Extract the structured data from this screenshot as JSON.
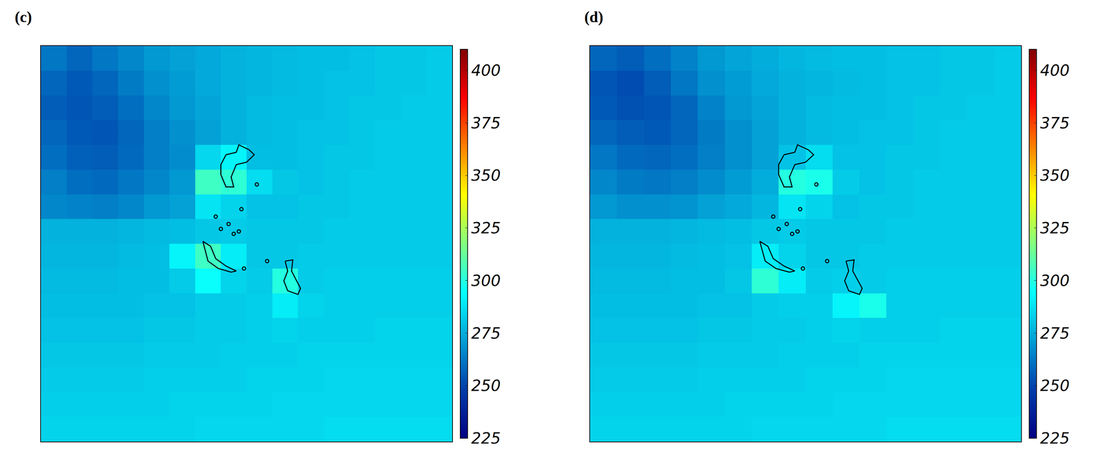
{
  "chart_data": [
    {
      "type": "heatmap",
      "panel": "(c)",
      "tick_labels": false,
      "xlim": [
        0,
        16
      ],
      "ylim": [
        0,
        16
      ],
      "x": [
        0.5,
        1.5,
        2.5,
        3.5,
        4.5,
        5.5,
        6.5,
        7.5,
        8.5,
        9.5,
        10.5,
        11.5,
        12.5,
        13.5,
        14.5,
        15.5
      ],
      "y": [
        15.5,
        14.5,
        13.5,
        12.5,
        11.5,
        10.5,
        9.5,
        8.5,
        7.5,
        6.5,
        5.5,
        4.5,
        3.5,
        2.5,
        1.5,
        0.5
      ],
      "z": [
        [
          262,
          258,
          262,
          266,
          270,
          272,
          274,
          276,
          277,
          278,
          279,
          279,
          280,
          281,
          281,
          282
        ],
        [
          258,
          255,
          258,
          263,
          268,
          271,
          274,
          276,
          277,
          278,
          279,
          280,
          280,
          281,
          281,
          282
        ],
        [
          256,
          254,
          256,
          260,
          266,
          270,
          273,
          276,
          278,
          279,
          279,
          280,
          281,
          281,
          282,
          282
        ],
        [
          258,
          255,
          254,
          258,
          264,
          268,
          272,
          276,
          278,
          279,
          280,
          280,
          281,
          282,
          282,
          282
        ],
        [
          260,
          257,
          256,
          259,
          264,
          267,
          285,
          292,
          279,
          279,
          280,
          281,
          281,
          282,
          282,
          282
        ],
        [
          264,
          260,
          259,
          262,
          266,
          270,
          305,
          302,
          286,
          281,
          280,
          281,
          282,
          282,
          282,
          282
        ],
        [
          266,
          265,
          264,
          266,
          270,
          272,
          288,
          284,
          280,
          280,
          281,
          281,
          282,
          282,
          282,
          282
        ],
        [
          276,
          276,
          276,
          277,
          278,
          279,
          281,
          282,
          281,
          281,
          281,
          282,
          282,
          282,
          282,
          282
        ],
        [
          277,
          277,
          277,
          278,
          279,
          292,
          305,
          290,
          281,
          281,
          282,
          282,
          282,
          282,
          282,
          282
        ],
        [
          278,
          278,
          278,
          279,
          279,
          282,
          295,
          284,
          282,
          300,
          282,
          283,
          283,
          283,
          283,
          283
        ],
        [
          279,
          279,
          279,
          279,
          280,
          280,
          282,
          282,
          283,
          290,
          284,
          283,
          283,
          283,
          283,
          283
        ],
        [
          280,
          280,
          280,
          280,
          281,
          281,
          282,
          282,
          283,
          284,
          283,
          283,
          283,
          284,
          284,
          284
        ],
        [
          281,
          281,
          281,
          281,
          282,
          282,
          282,
          283,
          283,
          283,
          284,
          284,
          284,
          284,
          284,
          284
        ],
        [
          282,
          282,
          282,
          282,
          283,
          283,
          283,
          283,
          284,
          284,
          284,
          285,
          285,
          285,
          285,
          285
        ],
        [
          283,
          283,
          283,
          283,
          283,
          284,
          284,
          284,
          284,
          285,
          285,
          285,
          285,
          285,
          285,
          285
        ],
        [
          284,
          284,
          284,
          284,
          284,
          284,
          285,
          285,
          285,
          285,
          285,
          286,
          286,
          286,
          286,
          286
        ]
      ],
      "colorbar_range": [
        225,
        410
      ],
      "colorbar_ticks": [
        225,
        250,
        275,
        300,
        325,
        350,
        375,
        400
      ],
      "outlines": [
        [
          [
            7.2,
            11.6
          ],
          [
            7.6,
            11.7
          ],
          [
            7.7,
            12.0
          ],
          [
            8.1,
            11.8
          ],
          [
            8.3,
            11.6
          ],
          [
            8.0,
            11.3
          ],
          [
            7.6,
            11.2
          ],
          [
            7.4,
            10.7
          ],
          [
            7.5,
            10.3
          ],
          [
            7.2,
            10.3
          ],
          [
            7.0,
            10.8
          ],
          [
            7.0,
            11.2
          ],
          [
            7.2,
            11.6
          ]
        ],
        [
          [
            6.3,
            8.1
          ],
          [
            6.6,
            7.9
          ],
          [
            6.8,
            7.4
          ],
          [
            7.2,
            7.1
          ],
          [
            7.6,
            6.9
          ],
          [
            7.4,
            6.85
          ],
          [
            6.9,
            7.0
          ],
          [
            6.5,
            7.3
          ],
          [
            6.4,
            7.7
          ],
          [
            6.3,
            8.1
          ]
        ],
        [
          [
            9.5,
            7.3
          ],
          [
            9.8,
            7.35
          ],
          [
            9.75,
            6.9
          ],
          [
            9.9,
            6.6
          ],
          [
            10.1,
            6.2
          ],
          [
            10.0,
            5.95
          ],
          [
            9.6,
            6.1
          ],
          [
            9.45,
            6.5
          ],
          [
            9.6,
            6.9
          ],
          [
            9.5,
            7.3
          ]
        ]
      ],
      "islets": [
        [
          8.4,
          10.4
        ],
        [
          7.0,
          8.6
        ],
        [
          7.3,
          8.8
        ],
        [
          7.5,
          8.4
        ],
        [
          7.7,
          8.5
        ],
        [
          7.8,
          9.4
        ],
        [
          6.8,
          9.1
        ],
        [
          7.9,
          7.0
        ],
        [
          8.8,
          7.3
        ]
      ]
    },
    {
      "type": "heatmap",
      "panel": "(d)",
      "tick_labels": false,
      "xlim": [
        0,
        16
      ],
      "ylim": [
        0,
        16
      ],
      "x": [
        0.5,
        1.5,
        2.5,
        3.5,
        4.5,
        5.5,
        6.5,
        7.5,
        8.5,
        9.5,
        10.5,
        11.5,
        12.5,
        13.5,
        14.5,
        15.5
      ],
      "y": [
        15.5,
        14.5,
        13.5,
        12.5,
        11.5,
        10.5,
        9.5,
        8.5,
        7.5,
        6.5,
        5.5,
        4.5,
        3.5,
        2.5,
        1.5,
        0.5
      ],
      "z": [
        [
          258,
          256,
          260,
          265,
          270,
          273,
          275,
          277,
          278,
          279,
          279,
          280,
          280,
          281,
          281,
          282
        ],
        [
          254,
          252,
          256,
          262,
          268,
          271,
          274,
          276,
          277,
          278,
          279,
          280,
          280,
          281,
          281,
          282
        ],
        [
          255,
          253,
          254,
          258,
          265,
          270,
          273,
          276,
          278,
          279,
          279,
          280,
          281,
          281,
          282,
          282
        ],
        [
          258,
          256,
          255,
          258,
          263,
          268,
          272,
          276,
          278,
          279,
          280,
          280,
          281,
          282,
          282,
          282
        ],
        [
          262,
          259,
          258,
          260,
          264,
          268,
          272,
          280,
          286,
          280,
          280,
          281,
          281,
          282,
          282,
          282
        ],
        [
          266,
          263,
          262,
          264,
          267,
          271,
          275,
          300,
          298,
          282,
          280,
          281,
          282,
          282,
          282,
          282
        ],
        [
          270,
          268,
          268,
          269,
          272,
          274,
          277,
          288,
          284,
          280,
          281,
          281,
          282,
          282,
          282,
          282
        ],
        [
          276,
          276,
          276,
          277,
          278,
          279,
          281,
          282,
          281,
          281,
          281,
          282,
          282,
          282,
          282,
          282
        ],
        [
          277,
          277,
          277,
          278,
          279,
          280,
          290,
          284,
          281,
          281,
          282,
          282,
          282,
          282,
          282,
          282
        ],
        [
          278,
          278,
          278,
          279,
          279,
          281,
          302,
          290,
          282,
          283,
          282,
          283,
          283,
          283,
          283,
          283
        ],
        [
          279,
          279,
          279,
          279,
          280,
          280,
          282,
          283,
          283,
          292,
          298,
          283,
          283,
          283,
          283,
          283
        ],
        [
          280,
          280,
          280,
          280,
          281,
          281,
          282,
          282,
          283,
          284,
          283,
          283,
          283,
          284,
          284,
          284
        ],
        [
          281,
          281,
          281,
          281,
          282,
          282,
          282,
          283,
          283,
          283,
          284,
          284,
          284,
          284,
          284,
          284
        ],
        [
          282,
          282,
          282,
          282,
          283,
          283,
          283,
          283,
          284,
          284,
          284,
          285,
          285,
          285,
          285,
          285
        ],
        [
          283,
          283,
          283,
          283,
          283,
          284,
          284,
          284,
          284,
          285,
          285,
          285,
          285,
          285,
          285,
          285
        ],
        [
          284,
          284,
          284,
          284,
          284,
          284,
          285,
          285,
          285,
          285,
          285,
          286,
          286,
          286,
          286,
          286
        ]
      ],
      "colorbar_range": [
        225,
        410
      ],
      "colorbar_ticks": [
        225,
        250,
        275,
        300,
        325,
        350,
        375,
        400
      ],
      "outlines": [
        [
          [
            7.2,
            11.6
          ],
          [
            7.6,
            11.7
          ],
          [
            7.7,
            12.0
          ],
          [
            8.1,
            11.8
          ],
          [
            8.3,
            11.6
          ],
          [
            8.0,
            11.3
          ],
          [
            7.6,
            11.2
          ],
          [
            7.4,
            10.7
          ],
          [
            7.5,
            10.3
          ],
          [
            7.2,
            10.3
          ],
          [
            7.0,
            10.8
          ],
          [
            7.0,
            11.2
          ],
          [
            7.2,
            11.6
          ]
        ],
        [
          [
            6.3,
            8.1
          ],
          [
            6.6,
            7.9
          ],
          [
            6.8,
            7.4
          ],
          [
            7.2,
            7.1
          ],
          [
            7.6,
            6.9
          ],
          [
            7.4,
            6.85
          ],
          [
            6.9,
            7.0
          ],
          [
            6.5,
            7.3
          ],
          [
            6.4,
            7.7
          ],
          [
            6.3,
            8.1
          ]
        ],
        [
          [
            9.5,
            7.3
          ],
          [
            9.8,
            7.35
          ],
          [
            9.75,
            6.9
          ],
          [
            9.9,
            6.6
          ],
          [
            10.1,
            6.2
          ],
          [
            10.0,
            5.95
          ],
          [
            9.6,
            6.1
          ],
          [
            9.45,
            6.5
          ],
          [
            9.6,
            6.9
          ],
          [
            9.5,
            7.3
          ]
        ]
      ],
      "islets": [
        [
          8.4,
          10.4
        ],
        [
          7.0,
          8.6
        ],
        [
          7.3,
          8.8
        ],
        [
          7.5,
          8.4
        ],
        [
          7.7,
          8.5
        ],
        [
          7.8,
          9.4
        ],
        [
          6.8,
          9.1
        ],
        [
          7.9,
          7.0
        ],
        [
          8.8,
          7.3
        ]
      ]
    }
  ]
}
